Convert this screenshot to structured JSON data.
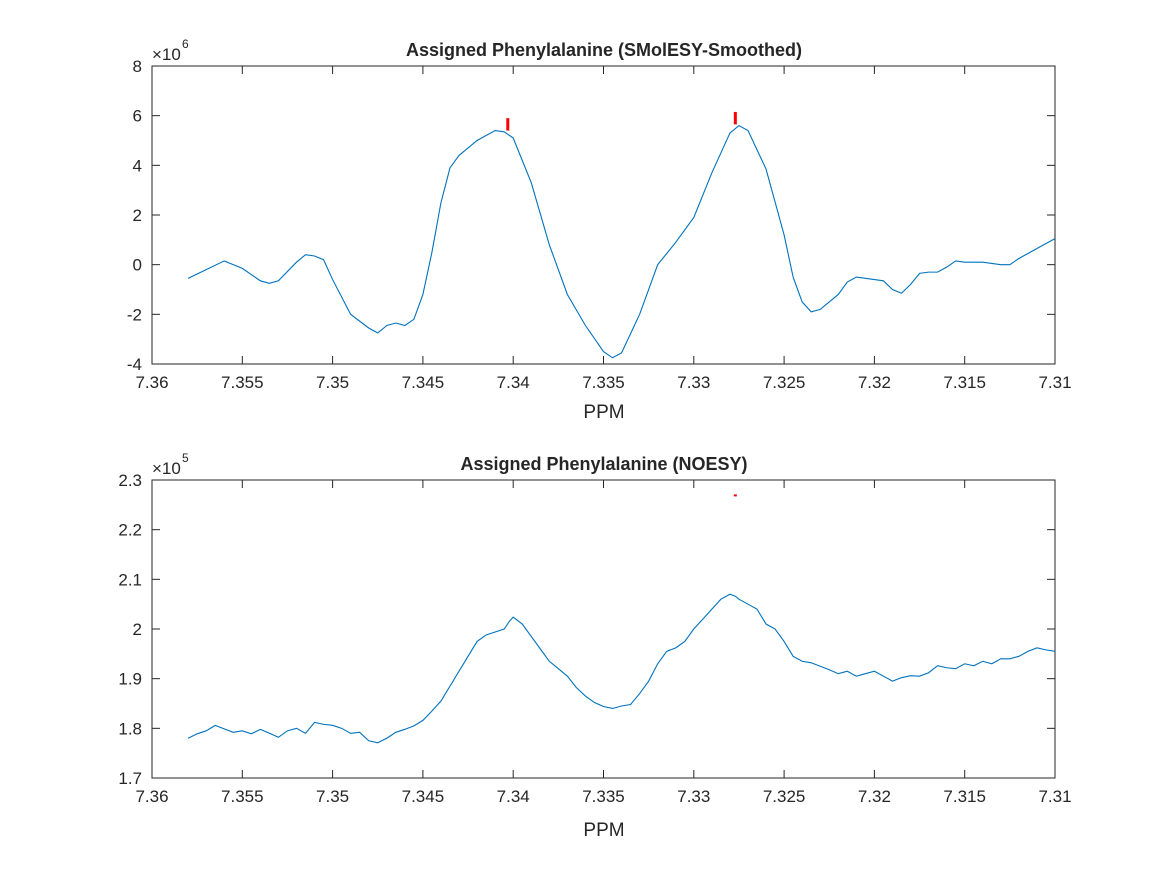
{
  "chart_data": [
    {
      "type": "line",
      "title": "Assigned Phenylalanine (SMolESY-Smoothed)",
      "xlabel": "PPM",
      "ylabel": "",
      "xlim": [
        7.36,
        7.31
      ],
      "x_reversed": true,
      "ylim": [
        -4,
        8
      ],
      "y_exponent": "6",
      "x_ticks": [
        "7.36",
        "7.355",
        "7.35",
        "7.345",
        "7.34",
        "7.335",
        "7.33",
        "7.325",
        "7.32",
        "7.315",
        "7.31"
      ],
      "y_ticks": [
        "-4",
        "-2",
        "0",
        "2",
        "4",
        "6",
        "8"
      ],
      "grid": false,
      "series": [
        {
          "color": "#0072BD",
          "x": [
            7.358,
            7.357,
            7.356,
            7.355,
            7.354,
            7.3535,
            7.353,
            7.352,
            7.3515,
            7.351,
            7.3505,
            7.35,
            7.349,
            7.348,
            7.3475,
            7.347,
            7.3465,
            7.346,
            7.3455,
            7.345,
            7.3445,
            7.344,
            7.3435,
            7.343,
            7.342,
            7.341,
            7.3405,
            7.34,
            7.339,
            7.338,
            7.337,
            7.336,
            7.335,
            7.3345,
            7.334,
            7.333,
            7.332,
            7.3315,
            7.331,
            7.33,
            7.329,
            7.328,
            7.3275,
            7.327,
            7.326,
            7.325,
            7.3245,
            7.324,
            7.3235,
            7.323,
            7.322,
            7.3215,
            7.321,
            7.3205,
            7.32,
            7.3195,
            7.319,
            7.3185,
            7.318,
            7.3175,
            7.317,
            7.3165,
            7.316,
            7.3155,
            7.315,
            7.314,
            7.313,
            7.3125,
            7.312,
            7.311,
            7.31
          ],
          "y": [
            -0.55,
            -0.2,
            0.15,
            -0.15,
            -0.65,
            -0.75,
            -0.65,
            0.1,
            0.4,
            0.35,
            0.2,
            -0.6,
            -2.0,
            -2.55,
            -2.75,
            -2.45,
            -2.35,
            -2.45,
            -2.2,
            -1.2,
            0.5,
            2.5,
            3.9,
            4.4,
            5.0,
            5.4,
            5.35,
            5.1,
            3.3,
            0.8,
            -1.2,
            -2.45,
            -3.5,
            -3.75,
            -3.55,
            -2.0,
            0.0,
            0.45,
            0.9,
            1.9,
            3.7,
            5.3,
            5.6,
            5.4,
            3.85,
            1.2,
            -0.5,
            -1.5,
            -1.9,
            -1.8,
            -1.2,
            -0.7,
            -0.5,
            -0.55,
            -0.6,
            -0.65,
            -1.0,
            -1.15,
            -0.8,
            -0.35,
            -0.3,
            -0.3,
            -0.1,
            0.15,
            0.1,
            0.1,
            0.0,
            0.0,
            0.25,
            0.65,
            1.05
          ]
        }
      ],
      "markers": [
        {
          "x": 7.3403,
          "y_low": 5.4,
          "y_high": 5.9,
          "color": "#ff0000"
        },
        {
          "x": 7.3277,
          "y_low": 5.65,
          "y_high": 6.15,
          "color": "#ff0000"
        }
      ]
    },
    {
      "type": "line",
      "title": "Assigned Phenylalanine (NOESY)",
      "xlabel": "PPM",
      "ylabel": "",
      "xlim": [
        7.36,
        7.31
      ],
      "x_reversed": true,
      "ylim": [
        1.7,
        2.3
      ],
      "y_exponent": "5",
      "x_ticks": [
        "7.36",
        "7.355",
        "7.35",
        "7.345",
        "7.34",
        "7.335",
        "7.33",
        "7.325",
        "7.32",
        "7.315",
        "7.31"
      ],
      "y_ticks": [
        "1.7",
        "1.8",
        "1.9",
        "2",
        "2.1",
        "2.2",
        "2.3"
      ],
      "grid": false,
      "series": [
        {
          "color": "#0072BD",
          "x": [
            7.358,
            7.3575,
            7.357,
            7.3565,
            7.356,
            7.3555,
            7.355,
            7.3545,
            7.354,
            7.3535,
            7.353,
            7.3525,
            7.352,
            7.3515,
            7.351,
            7.3505,
            7.35,
            7.3495,
            7.349,
            7.3485,
            7.348,
            7.3475,
            7.347,
            7.3465,
            7.346,
            7.3455,
            7.345,
            7.3445,
            7.344,
            7.3435,
            7.343,
            7.3425,
            7.342,
            7.3415,
            7.341,
            7.3405,
            7.3402,
            7.34,
            7.3395,
            7.339,
            7.3385,
            7.338,
            7.3375,
            7.337,
            7.3365,
            7.336,
            7.3355,
            7.335,
            7.3345,
            7.334,
            7.3335,
            7.333,
            7.3325,
            7.332,
            7.3315,
            7.331,
            7.3305,
            7.33,
            7.3295,
            7.329,
            7.3285,
            7.328,
            7.3277,
            7.3275,
            7.327,
            7.3265,
            7.326,
            7.3255,
            7.325,
            7.3245,
            7.324,
            7.3235,
            7.323,
            7.3225,
            7.322,
            7.3215,
            7.321,
            7.3205,
            7.32,
            7.3195,
            7.319,
            7.3185,
            7.318,
            7.3175,
            7.317,
            7.3165,
            7.316,
            7.3155,
            7.315,
            7.3145,
            7.314,
            7.3135,
            7.313,
            7.3125,
            7.312,
            7.3115,
            7.311,
            7.3105,
            7.31
          ],
          "y": [
            1.78,
            1.789,
            1.795,
            1.806,
            1.799,
            1.792,
            1.795,
            1.789,
            1.798,
            1.79,
            1.782,
            1.795,
            1.8,
            1.79,
            1.812,
            1.808,
            1.806,
            1.8,
            1.79,
            1.792,
            1.775,
            1.771,
            1.78,
            1.792,
            1.798,
            1.805,
            1.816,
            1.835,
            1.855,
            1.885,
            1.915,
            1.945,
            1.975,
            1.988,
            1.994,
            2.0,
            2.016,
            2.024,
            2.01,
            1.985,
            1.96,
            1.935,
            1.92,
            1.905,
            1.882,
            1.865,
            1.852,
            1.844,
            1.84,
            1.845,
            1.848,
            1.87,
            1.895,
            1.93,
            1.955,
            1.962,
            1.975,
            2.0,
            2.02,
            2.04,
            2.06,
            2.07,
            2.066,
            2.06,
            2.05,
            2.04,
            2.01,
            2.0,
            1.975,
            1.945,
            1.935,
            1.932,
            1.925,
            1.918,
            1.91,
            1.915,
            1.905,
            1.91,
            1.915,
            1.905,
            1.895,
            1.902,
            1.906,
            1.905,
            1.912,
            1.926,
            1.922,
            1.92,
            1.93,
            1.926,
            1.935,
            1.93,
            1.94,
            1.94,
            1.945,
            1.955,
            1.962,
            1.958,
            1.955
          ]
        }
      ],
      "markers": [
        {
          "x": 7.3277,
          "y_low": 2.267,
          "y_high": 2.271,
          "color": "#ff0000"
        }
      ]
    }
  ]
}
